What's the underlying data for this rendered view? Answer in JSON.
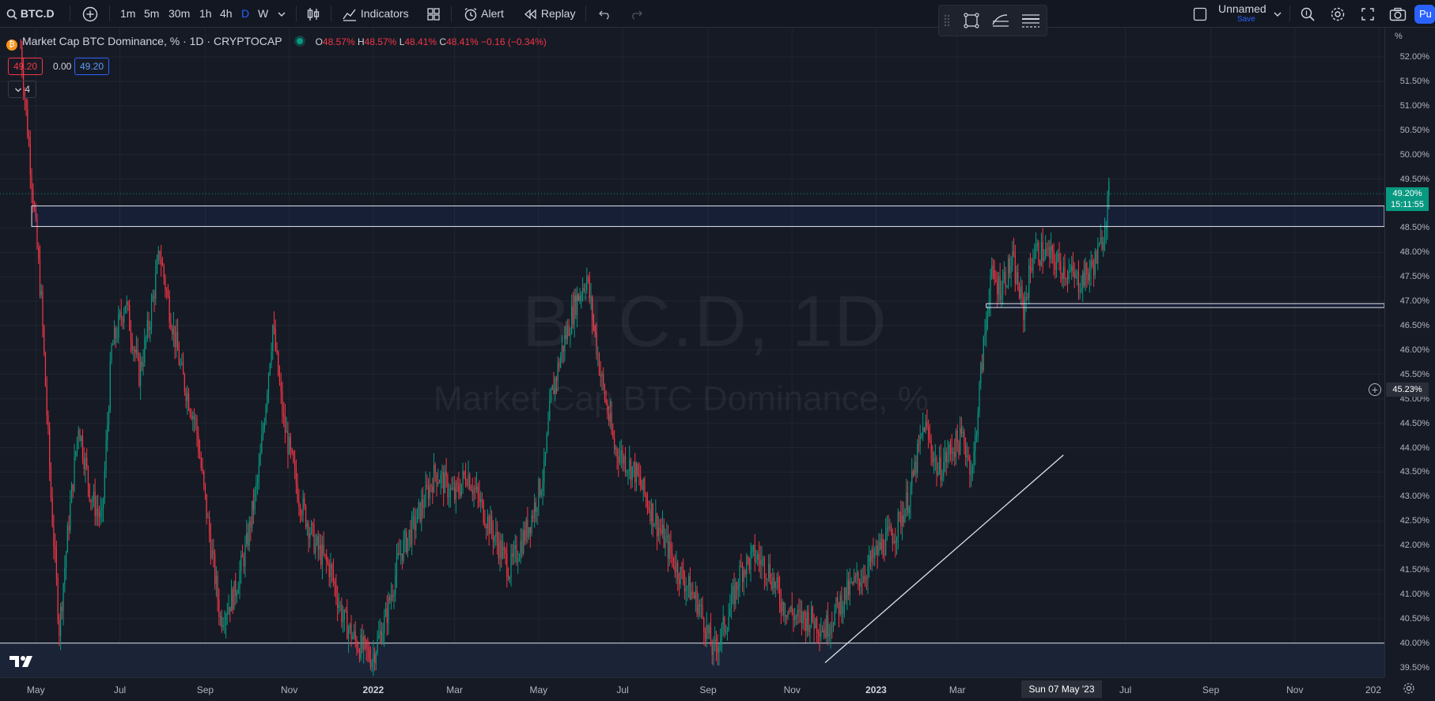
{
  "toolbar": {
    "symbol": "BTC.D",
    "intervals": [
      "1m",
      "5m",
      "30m",
      "1h",
      "4h",
      "D",
      "W"
    ],
    "active_interval": "D",
    "indicators_label": "Indicators",
    "alert_label": "Alert",
    "replay_label": "Replay",
    "layout_name": "Unnamed",
    "save_label": "Save",
    "publish_label": "Pu"
  },
  "legend": {
    "title": "Market Cap BTC Dominance, % · 1D · CRYPTOCAP",
    "open_label": "O",
    "open": "48.57%",
    "high_label": "H",
    "high": "48.57%",
    "low_label": "L",
    "low": "48.41%",
    "close_label": "C",
    "close": "48.41%",
    "change": "−0.16 (−0.34%)",
    "sell_price": "49.20",
    "spread": "0.00",
    "buy_price": "49.20",
    "collapsed_count": "4"
  },
  "watermark": {
    "symbol": "BTC.D, 1D",
    "description": "Market Cap BTC Dominance, %"
  },
  "axis": {
    "unit": "%",
    "current_price": "49.20%",
    "countdown": "15:11:55",
    "crosshair_price": "45.23%",
    "crosshair_date": "Sun 07 May '23"
  },
  "colors": {
    "up": "#089981",
    "down": "#f23645",
    "accent": "#2962ff",
    "background": "#161a25"
  },
  "chart_data": {
    "type": "candlestick",
    "price_ticks": [
      "52.00%",
      "51.50%",
      "51.00%",
      "50.50%",
      "50.00%",
      "49.50%",
      "48.50%",
      "48.00%",
      "47.50%",
      "47.00%",
      "46.50%",
      "46.00%",
      "45.50%",
      "45.00%",
      "44.50%",
      "44.00%",
      "43.50%",
      "43.00%",
      "42.50%",
      "42.00%",
      "41.50%",
      "41.00%",
      "40.50%",
      "40.00%",
      "39.50%"
    ],
    "price_tick_values": [
      52.0,
      51.5,
      51.0,
      50.5,
      50.0,
      49.5,
      48.5,
      48.0,
      47.5,
      47.0,
      46.5,
      46.0,
      45.5,
      45.0,
      44.5,
      44.0,
      43.5,
      43.0,
      42.5,
      42.0,
      41.5,
      41.0,
      40.5,
      40.0,
      39.5
    ],
    "time_ticks": [
      "May",
      "Jul",
      "Sep",
      "Nov",
      "2022",
      "Mar",
      "May",
      "Jul",
      "Sep",
      "Nov",
      "2023",
      "Mar",
      "Jul",
      "Sep",
      "Nov",
      "202"
    ],
    "time_tick_dates": [
      "2021-05-01",
      "2021-07-01",
      "2021-09-01",
      "2021-11-01",
      "2022-01-01",
      "2022-03-01",
      "2022-05-01",
      "2022-07-01",
      "2022-09-01",
      "2022-11-01",
      "2023-01-01",
      "2023-03-01",
      "2023-07-01",
      "2023-09-01",
      "2023-11-01",
      "2024-01-01"
    ],
    "ylim": [
      39.3,
      52.6
    ],
    "xlim": [
      "2021-04-05",
      "2024-01-05"
    ],
    "close_path": [
      [
        "2021-04-20",
        52.2
      ],
      [
        "2021-04-28",
        49.5
      ],
      [
        "2021-05-05",
        47.0
      ],
      [
        "2021-05-12",
        43.0
      ],
      [
        "2021-05-18",
        40.3
      ],
      [
        "2021-05-25",
        42.5
      ],
      [
        "2021-06-01",
        44.5
      ],
      [
        "2021-06-10",
        43.0
      ],
      [
        "2021-06-18",
        42.5
      ],
      [
        "2021-06-25",
        46.0
      ],
      [
        "2021-07-05",
        47.0
      ],
      [
        "2021-07-15",
        45.5
      ],
      [
        "2021-07-22",
        46.5
      ],
      [
        "2021-07-30",
        48.0
      ],
      [
        "2021-08-05",
        47.0
      ],
      [
        "2021-08-15",
        45.5
      ],
      [
        "2021-08-25",
        44.5
      ],
      [
        "2021-09-05",
        42.0
      ],
      [
        "2021-09-12",
        40.5
      ],
      [
        "2021-09-22",
        41.0
      ],
      [
        "2021-10-01",
        42.0
      ],
      [
        "2021-10-10",
        43.5
      ],
      [
        "2021-10-20",
        46.5
      ],
      [
        "2021-10-28",
        44.5
      ],
      [
        "2021-11-08",
        43.0
      ],
      [
        "2021-11-20",
        42.0
      ],
      [
        "2021-12-01",
        41.5
      ],
      [
        "2021-12-10",
        40.5
      ],
      [
        "2021-12-20",
        40.0
      ],
      [
        "2021-12-31",
        39.7
      ],
      [
        "2022-01-10",
        40.5
      ],
      [
        "2022-01-20",
        41.8
      ],
      [
        "2022-02-01",
        42.5
      ],
      [
        "2022-02-15",
        43.5
      ],
      [
        "2022-03-01",
        43.0
      ],
      [
        "2022-03-10",
        43.5
      ],
      [
        "2022-03-25",
        42.5
      ],
      [
        "2022-04-10",
        41.5
      ],
      [
        "2022-04-25",
        42.5
      ],
      [
        "2022-05-05",
        43.5
      ],
      [
        "2022-05-10",
        45.0
      ],
      [
        "2022-05-18",
        46.0
      ],
      [
        "2022-05-28",
        47.0
      ],
      [
        "2022-06-05",
        47.5
      ],
      [
        "2022-06-15",
        45.5
      ],
      [
        "2022-06-25",
        44.0
      ],
      [
        "2022-07-10",
        43.5
      ],
      [
        "2022-07-25",
        42.5
      ],
      [
        "2022-08-10",
        41.5
      ],
      [
        "2022-08-25",
        40.8
      ],
      [
        "2022-09-05",
        39.8
      ],
      [
        "2022-09-15",
        40.5
      ],
      [
        "2022-09-25",
        41.5
      ],
      [
        "2022-10-05",
        41.8
      ],
      [
        "2022-10-15",
        41.5
      ],
      [
        "2022-10-25",
        40.8
      ],
      [
        "2022-11-05",
        40.5
      ],
      [
        "2022-11-15",
        40.5
      ],
      [
        "2022-11-25",
        40.3
      ],
      [
        "2022-12-10",
        41.0
      ],
      [
        "2022-12-25",
        41.5
      ],
      [
        "2023-01-05",
        42.0
      ],
      [
        "2023-01-15",
        42.3
      ],
      [
        "2023-01-25",
        43.0
      ],
      [
        "2023-02-05",
        44.5
      ],
      [
        "2023-02-15",
        43.5
      ],
      [
        "2023-02-25",
        44.0
      ],
      [
        "2023-03-05",
        44.2
      ],
      [
        "2023-03-12",
        43.5
      ],
      [
        "2023-03-18",
        45.5
      ],
      [
        "2023-03-25",
        47.5
      ],
      [
        "2023-04-01",
        47.3
      ],
      [
        "2023-04-10",
        47.8
      ],
      [
        "2023-04-18",
        46.8
      ],
      [
        "2023-04-25",
        48.0
      ],
      [
        "2023-05-03",
        48.0
      ],
      [
        "2023-05-12",
        47.8
      ],
      [
        "2023-05-20",
        47.6
      ],
      [
        "2023-05-28",
        47.4
      ],
      [
        "2023-06-05",
        47.6
      ],
      [
        "2023-06-12",
        48.0
      ],
      [
        "2023-06-16",
        48.6
      ],
      [
        "2023-06-19",
        49.2
      ]
    ],
    "annotations": {
      "resistance_zone": [
        48.53,
        48.95
      ],
      "support_zone": [
        46.87,
        46.95
      ],
      "support_line": 40.0,
      "trendline": [
        [
          "2022-11-25",
          39.6
        ],
        [
          "2023-05-17",
          43.85
        ]
      ]
    }
  }
}
